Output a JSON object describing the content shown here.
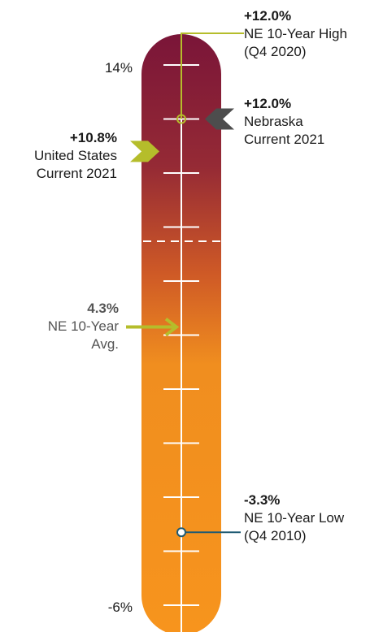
{
  "chart_data": {
    "type": "gauge",
    "ylim": [
      -6,
      14
    ],
    "axis_labels": {
      "top": "14%",
      "bottom": "-6%"
    },
    "ticks": [
      14,
      12,
      10,
      8,
      6,
      4,
      2,
      0,
      -2,
      -4,
      -6
    ],
    "colors": {
      "top": "#7a1538",
      "bottom": "#f7941d",
      "us": "#b5bd2b",
      "ne": "#4d4d4d",
      "high": "#b5bd2b",
      "low": "#1f5a73"
    },
    "markers": {
      "high": {
        "value": 12.0,
        "value_label": "+12.0%",
        "line1": "NE 10-Year High",
        "line2": "(Q4 2020)"
      },
      "ne_current": {
        "value": 12.0,
        "value_label": "+12.0%",
        "line1": "Nebraska",
        "line2": "Current 2021"
      },
      "us_current": {
        "value": 10.8,
        "value_label": "+10.8%",
        "line1": "United States",
        "line2": "Current 2021"
      },
      "avg": {
        "value": 4.3,
        "value_label": "4.3%",
        "line1": "NE 10-Year",
        "line2": "Avg."
      },
      "low": {
        "value": -3.3,
        "value_label": "-3.3%",
        "line1": "NE 10-Year Low",
        "line2": "(Q4 2010)"
      }
    }
  }
}
